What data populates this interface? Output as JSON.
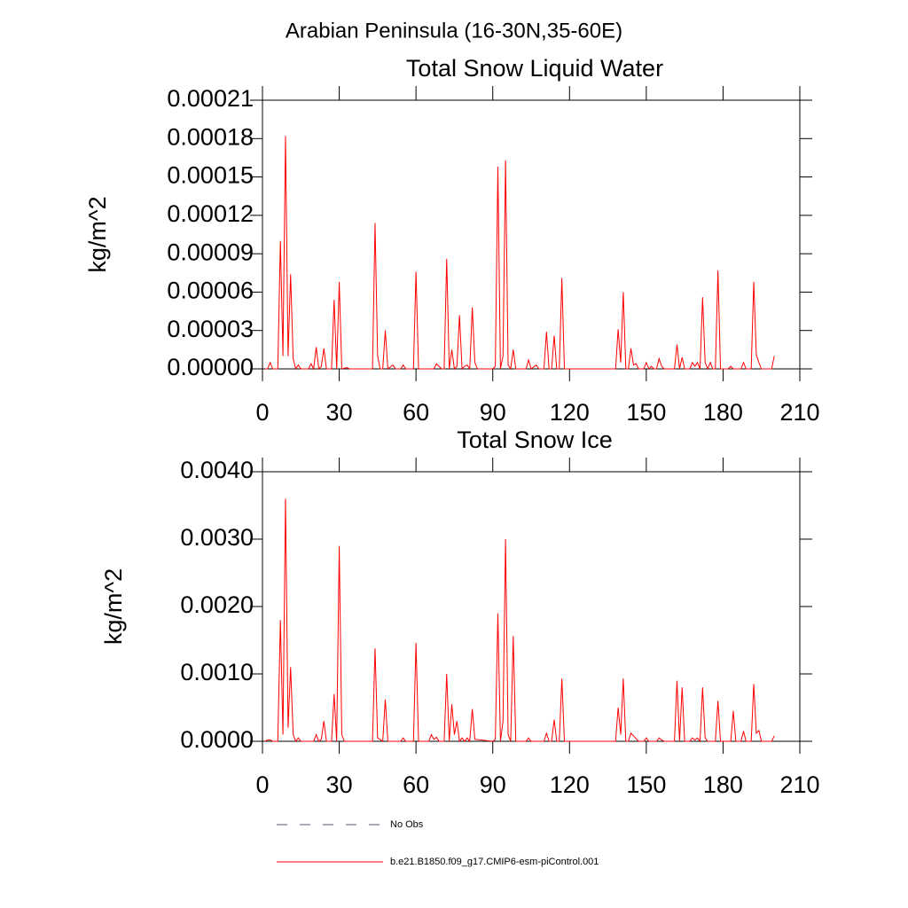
{
  "title": "Arabian Peninsula (16-30N,35-60E)",
  "legend": [
    {
      "name": "No Obs",
      "color": "#4d5a7a",
      "dash": "12 14"
    }
  ],
  "chart_data": [
    {
      "type": "line",
      "title": "Total Snow Liquid Water",
      "ylabel": "kg/m^2",
      "xlim": [
        0,
        210
      ],
      "xticks": [
        0,
        30,
        60,
        90,
        120,
        150,
        180,
        210
      ],
      "ylim": [
        0,
        0.00021
      ],
      "yticks": [
        {
          "value": 0,
          "label": "0.00000"
        },
        3e-05,
        6e-05,
        9e-05,
        0.00012,
        0.00015,
        0.00018,
        0.00021
      ],
      "x": [
        1,
        2,
        3,
        4,
        6,
        7,
        8,
        9,
        10,
        11,
        12,
        13,
        14,
        15,
        18,
        19,
        20,
        21,
        22,
        23,
        24,
        25,
        27,
        28,
        29,
        30,
        31,
        33,
        34,
        43,
        44,
        45,
        46,
        47,
        48,
        49,
        51,
        52,
        54,
        55,
        56,
        59,
        60,
        61,
        67,
        68,
        70,
        71,
        72,
        73,
        74,
        75,
        76,
        77,
        78,
        79,
        80,
        81,
        82,
        83,
        84,
        90,
        91,
        92,
        93,
        94,
        95,
        96,
        97,
        98,
        99,
        103,
        104,
        105,
        107,
        108,
        110,
        111,
        112,
        113,
        114,
        115,
        116,
        117,
        118,
        138,
        139,
        140,
        141,
        142,
        143,
        144,
        145,
        146,
        147,
        149,
        150,
        151,
        152,
        153,
        154,
        155,
        156,
        157,
        161,
        162,
        163,
        164,
        165,
        167,
        168,
        169,
        170,
        171,
        172,
        173,
        174,
        175,
        176,
        177,
        178,
        179,
        182,
        183,
        184,
        187,
        188,
        189,
        191,
        192,
        193,
        194,
        195,
        199,
        200
      ],
      "series": [
        {
          "name": "b.e21.B1850.f09_g17.CMIP6-esm-piControl.001",
          "color": "#ff0000",
          "values": [
            0,
            0,
            5e-06,
            0,
            0,
            0.0001,
            1e-05,
            0.000182,
            1e-05,
            7.4e-05,
            8e-06,
            0,
            3e-06,
            0,
            0,
            4e-06,
            0,
            1.7e-05,
            0,
            2e-06,
            1.6e-05,
            0,
            0,
            5.4e-05,
            0,
            6.8e-05,
            0,
            1e-06,
            0,
            0,
            0.000114,
            1e-05,
            0,
            0,
            3e-05,
            0,
            3e-06,
            0,
            0,
            3e-06,
            0,
            0,
            7.6e-05,
            0,
            0,
            4e-06,
            0,
            0,
            8.6e-05,
            0,
            1.5e-05,
            0,
            2e-06,
            4.2e-05,
            0,
            2e-06,
            3e-06,
            0,
            4.8e-05,
            5e-06,
            0,
            0,
            2e-06,
            0.000158,
            0,
            1e-05,
            0.000163,
            3e-06,
            0,
            1.5e-05,
            0,
            0,
            7e-06,
            0,
            3e-06,
            0,
            0,
            2.9e-05,
            0,
            0,
            2.6e-05,
            0,
            0,
            7.1e-05,
            0,
            0,
            3.1e-05,
            5e-06,
            6e-05,
            0,
            0,
            1.6e-05,
            3e-06,
            4e-06,
            0,
            0,
            5e-06,
            0,
            2e-06,
            0,
            0,
            8e-06,
            2e-06,
            0,
            0,
            1.9e-05,
            0,
            9e-06,
            0,
            0,
            5e-06,
            2e-06,
            5e-06,
            0,
            5.6e-05,
            5e-06,
            0,
            5e-06,
            0,
            0,
            7.7e-05,
            0,
            0,
            2e-06,
            0,
            0,
            5e-06,
            0,
            0,
            6.8e-05,
            1.1e-05,
            5e-06,
            0,
            0,
            1e-05
          ]
        }
      ]
    },
    {
      "type": "line",
      "title": "Total Snow Ice",
      "ylabel": "kg/m^2",
      "xlim": [
        0,
        210
      ],
      "xticks": [
        0,
        30,
        60,
        90,
        120,
        150,
        180,
        210
      ],
      "ylim": [
        0,
        0.004
      ],
      "yticks": [
        {
          "value": 0,
          "label": "0.0000"
        },
        {
          "value": 0.001,
          "label": "0.0010"
        },
        {
          "value": 0.002,
          "label": "0.0020"
        },
        {
          "value": 0.003,
          "label": "0.0030"
        },
        {
          "value": 0.004,
          "label": "0.0040"
        }
      ],
      "x": [
        1,
        2,
        3,
        4,
        6,
        7,
        8,
        9,
        10,
        11,
        12,
        13,
        14,
        15,
        20,
        21,
        22,
        23,
        24,
        25,
        27,
        28,
        29,
        30,
        31,
        32,
        43,
        44,
        45,
        47,
        48,
        49,
        54,
        55,
        56,
        59,
        60,
        61,
        65,
        66,
        67,
        68,
        69,
        71,
        72,
        73,
        74,
        75,
        76,
        77,
        78,
        79,
        80,
        81,
        82,
        83,
        90,
        91,
        92,
        93,
        94,
        95,
        96,
        97,
        98,
        99,
        103,
        104,
        105,
        110,
        111,
        112,
        113,
        114,
        115,
        116,
        117,
        118,
        138,
        139,
        140,
        141,
        142,
        143,
        144,
        145,
        146,
        147,
        149,
        150,
        151,
        154,
        155,
        156,
        157,
        161,
        162,
        163,
        164,
        165,
        167,
        168,
        169,
        170,
        171,
        172,
        173,
        174,
        177,
        178,
        179,
        183,
        184,
        185,
        187,
        188,
        189,
        191,
        192,
        193,
        194,
        195,
        196,
        199,
        200
      ],
      "series": [
        {
          "name": "b.e21.B1850.f09_g17.CMIP6-esm-piControl.001",
          "color": "#ff0000",
          "values": [
            0,
            2e-05,
            2e-05,
            0,
            0,
            0.0018,
            0.0001,
            0.0036,
            0.0002,
            0.0011,
            0.0001,
            0,
            5e-05,
            0,
            0,
            0.0001,
            0,
            3e-05,
            0.0003,
            0,
            0,
            0.0007,
            0,
            0.0029,
            0.0001,
            0,
            0,
            0.00138,
            5e-05,
            0,
            0.00062,
            0,
            0,
            5e-05,
            0,
            0,
            0.00146,
            0,
            0,
            0.0001,
            3e-05,
            6e-05,
            0,
            0,
            0.001,
            0,
            0.00055,
            0.0001,
            0.0003,
            0,
            5e-05,
            0,
            5e-05,
            0,
            0.00048,
            3e-05,
            0,
            3e-05,
            0.0019,
            0,
            0.0003,
            0.003,
            0.0001,
            0,
            0.00156,
            0,
            0,
            5e-05,
            0,
            0,
            0.00012,
            0,
            0,
            0.00032,
            0,
            0,
            0.00093,
            0,
            0,
            0.0005,
            0.0001,
            0.00093,
            0,
            0,
            0.00012,
            8e-05,
            4e-05,
            0,
            0,
            5e-05,
            0,
            0,
            5e-05,
            2e-05,
            0,
            0,
            0.0009,
            0,
            0.0008,
            0,
            0,
            5e-05,
            2e-05,
            5e-05,
            0,
            0.0008,
            5e-05,
            0,
            0,
            0.0006,
            0,
            0,
            0.00045,
            0,
            0,
            0.00015,
            0,
            0,
            0.00085,
            0.00012,
            0.00016,
            0,
            0,
            0,
            8e-05
          ]
        }
      ]
    }
  ]
}
